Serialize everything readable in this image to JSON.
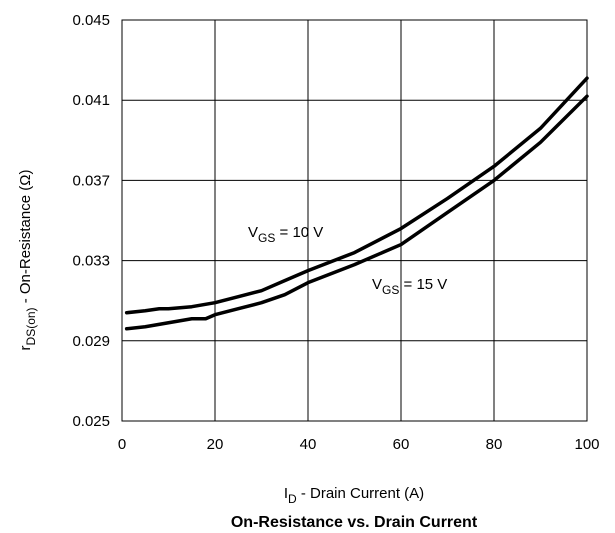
{
  "chart_data": {
    "type": "line",
    "title": "On-Resistance vs. Drain Current",
    "xlabel": {
      "main": "I",
      "sub": "D",
      "rest": "  -  Drain Current (A)"
    },
    "ylabel": {
      "main": "r",
      "sub": "DS(on)",
      "rest": " - On-Resistance (Ω)"
    },
    "xlim": [
      0,
      100
    ],
    "ylim": [
      0.025,
      0.045
    ],
    "x_ticks": [
      0,
      20,
      40,
      60,
      80,
      100
    ],
    "x_tick_labels": [
      "0",
      "20",
      "40",
      "60",
      "80",
      "100"
    ],
    "y_ticks": [
      0.025,
      0.029,
      0.033,
      0.037,
      0.041,
      0.045
    ],
    "y_tick_labels": [
      "0.025",
      "0.029",
      "0.033",
      "0.037",
      "0.041",
      "0.045"
    ],
    "grid": true,
    "legend": "none",
    "series": [
      {
        "x": [
          1,
          5,
          8,
          10,
          15,
          20,
          25,
          30,
          35,
          40,
          50,
          60,
          70,
          80,
          90,
          100
        ],
        "y": [
          0.0304,
          0.0305,
          0.0306,
          0.0306,
          0.0307,
          0.0309,
          0.0312,
          0.0315,
          0.032,
          0.0325,
          0.0334,
          0.0346,
          0.0361,
          0.0377,
          0.0396,
          0.0421
        ],
        "color": "#000000"
      },
      {
        "x": [
          1,
          5,
          10,
          15,
          18,
          20,
          25,
          30,
          35,
          40,
          50,
          60,
          70,
          80,
          90,
          100
        ],
        "y": [
          0.0296,
          0.0297,
          0.0299,
          0.0301,
          0.0301,
          0.0303,
          0.0306,
          0.0309,
          0.0313,
          0.0319,
          0.0328,
          0.0338,
          0.0354,
          0.037,
          0.0389,
          0.0412
        ],
        "color": "#000000"
      }
    ],
    "annotations": [
      {
        "main": "V",
        "sub": "GS",
        "rest": " = 10 V"
      },
      {
        "main": "V",
        "sub": "GS",
        "rest": " = 15 V"
      }
    ]
  }
}
